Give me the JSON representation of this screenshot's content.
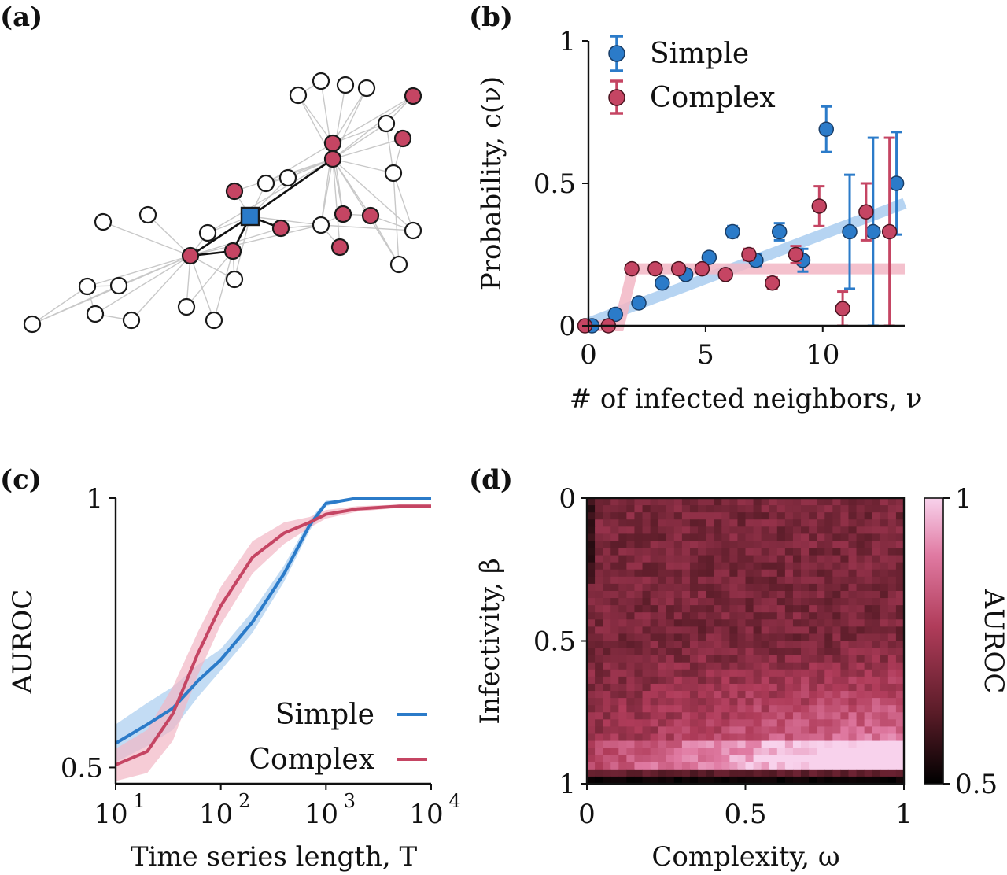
{
  "panels": {
    "a": {
      "label": "(a)"
    },
    "b": {
      "label": "(b)"
    },
    "c": {
      "label": "(c)"
    },
    "d": {
      "label": "(d)"
    }
  },
  "colors": {
    "simple": "#2b7bc9",
    "complex": "#c54563",
    "simple_band": "#a9cdf0",
    "complex_band": "#f2b6c4",
    "node_empty": "#ffffff",
    "node_stroke": "#1a1a1a",
    "edge": "#c8c8c8"
  },
  "chart_data": [
    {
      "panel": "a",
      "type": "network",
      "description_source": "drawn network of nodes; infected nodes colored red, focal node blue square",
      "node_states": {
        "focal": "blue-square",
        "infected": "red",
        "susceptible": "white"
      }
    },
    {
      "panel": "b",
      "type": "scatter",
      "xlabel": "# of infected neighbors, ν",
      "ylabel": "Probability, c(ν)",
      "xlim": [
        0,
        13.5
      ],
      "ylim": [
        0,
        1
      ],
      "xticks": [
        "0",
        "5",
        "10"
      ],
      "xtick_values": [
        0,
        5,
        10
      ],
      "yticks": [
        "0",
        "0.5",
        "1"
      ],
      "ytick_values": [
        0,
        0.5,
        1
      ],
      "legend": [
        "Simple",
        "Complex"
      ],
      "legend_position": "top-left",
      "series": [
        {
          "name": "Simple",
          "x": [
            0,
            1,
            2,
            3,
            4,
            5,
            6,
            7,
            8,
            9,
            10,
            11,
            12,
            13
          ],
          "y": [
            0.0,
            0.04,
            0.08,
            0.15,
            0.18,
            0.24,
            0.33,
            0.23,
            0.33,
            0.23,
            0.69,
            0.33,
            0.33,
            0.5
          ],
          "err": [
            0.0,
            0.01,
            0.01,
            0.01,
            0.01,
            0.01,
            0.02,
            0.02,
            0.03,
            0.04,
            0.08,
            0.2,
            0.33,
            0.18
          ],
          "fit": {
            "type": "linear",
            "x": [
              0,
              13.5
            ],
            "y": [
              0.01,
              0.43
            ]
          }
        },
        {
          "name": "Complex",
          "x": [
            0,
            1,
            2,
            3,
            4,
            5,
            6,
            7,
            8,
            9,
            10,
            11,
            12,
            13
          ],
          "y": [
            0.0,
            0.0,
            0.2,
            0.2,
            0.2,
            0.2,
            0.18,
            0.25,
            0.15,
            0.25,
            0.42,
            0.06,
            0.4,
            0.33
          ],
          "err": [
            0.0,
            0.0,
            0.01,
            0.01,
            0.01,
            0.01,
            0.01,
            0.02,
            0.02,
            0.03,
            0.07,
            0.06,
            0.1,
            0.33
          ],
          "fit": {
            "type": "threshold",
            "x": [
              0,
              1.3,
              1.9,
              13.5
            ],
            "y": [
              0,
              0,
              0.2,
              0.2
            ]
          }
        }
      ]
    },
    {
      "panel": "c",
      "type": "line",
      "xscale": "log",
      "xlabel": "Time series length, T",
      "ylabel": "AUROC",
      "xlim": [
        10,
        10000
      ],
      "ylim": [
        0.47,
        1.0
      ],
      "xticks": [
        "10",
        "10",
        "10",
        "10"
      ],
      "xtick_exponents": [
        "1",
        "2",
        "3",
        "4"
      ],
      "yticks": [
        "0.5",
        "1"
      ],
      "ytick_values": [
        0.5,
        1
      ],
      "legend": [
        "Simple",
        "Complex"
      ],
      "legend_position": "bottom-right",
      "series": [
        {
          "name": "Simple",
          "x": [
            10,
            20,
            35,
            60,
            100,
            200,
            400,
            700,
            1000,
            2000,
            5000,
            10000
          ],
          "y": [
            0.545,
            0.58,
            0.61,
            0.66,
            0.7,
            0.77,
            0.86,
            0.95,
            0.99,
            1.0,
            1.0,
            1.0
          ],
          "band": [
            0.035,
            0.04,
            0.04,
            0.03,
            0.02,
            0.02,
            0.015,
            0.01,
            0.005,
            0.0,
            0.0,
            0.0
          ]
        },
        {
          "name": "Complex",
          "x": [
            10,
            20,
            35,
            60,
            100,
            200,
            400,
            700,
            1000,
            2000,
            5000,
            10000
          ],
          "y": [
            0.505,
            0.53,
            0.6,
            0.71,
            0.8,
            0.89,
            0.935,
            0.955,
            0.97,
            0.98,
            0.985,
            0.985
          ],
          "band": [
            0.03,
            0.04,
            0.05,
            0.04,
            0.035,
            0.03,
            0.02,
            0.01,
            0.008,
            0.005,
            0.003,
            0.003
          ]
        }
      ]
    },
    {
      "panel": "d",
      "type": "heatmap",
      "xlabel": "Complexity, ω",
      "ylabel": "Infectivity, β",
      "xlim": [
        0,
        1
      ],
      "ylim": [
        1,
        0
      ],
      "xticks": [
        "0",
        "0.5",
        "1"
      ],
      "xtick_values": [
        0,
        0.5,
        1
      ],
      "yticks": [
        "0",
        "0.5",
        "1"
      ],
      "ytick_values": [
        0,
        0.5,
        1
      ],
      "colorbar_label": "AUROC",
      "colorbar_ticks": [
        "1",
        "0.5"
      ],
      "colorbar_range": [
        0.5,
        1
      ],
      "grid": [
        40,
        40
      ],
      "pattern": "AUROC ~0.6-0.7 (dark red) for most of the grid, rising to ~0.9-1.0 (pink) near beta 0.8-0.95 at high complexity; near-black row at beta = 1"
    }
  ]
}
